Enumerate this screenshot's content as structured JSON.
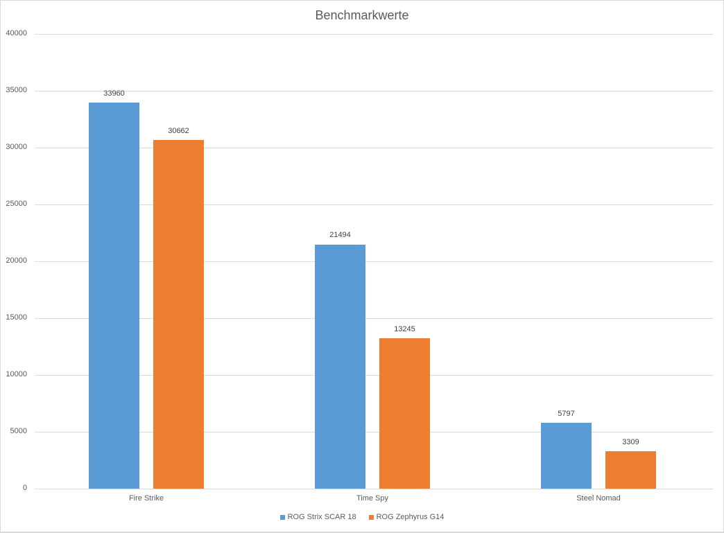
{
  "chart_data": {
    "type": "bar",
    "title": "Benchmarkwerte",
    "xlabel": "",
    "ylabel": "",
    "categories": [
      "Fire Strike",
      "Time Spy",
      "Steel Nomad"
    ],
    "series": [
      {
        "name": "ROG Strix SCAR 18",
        "color": "#5b9bd5",
        "values": [
          33960,
          21494,
          5797
        ]
      },
      {
        "name": "ROG Zephyrus G14",
        "color": "#ed7d31",
        "values": [
          30662,
          13245,
          3309
        ]
      }
    ],
    "ylim": [
      0,
      40000
    ],
    "yticks": [
      0,
      5000,
      10000,
      15000,
      20000,
      25000,
      30000,
      35000,
      40000
    ],
    "ytick_labels": [
      "0",
      "5000",
      "10000",
      "15000",
      "20000",
      "25000",
      "30000",
      "35000",
      "40000"
    ],
    "grid": true,
    "data_labels": true,
    "legend_position": "bottom"
  }
}
